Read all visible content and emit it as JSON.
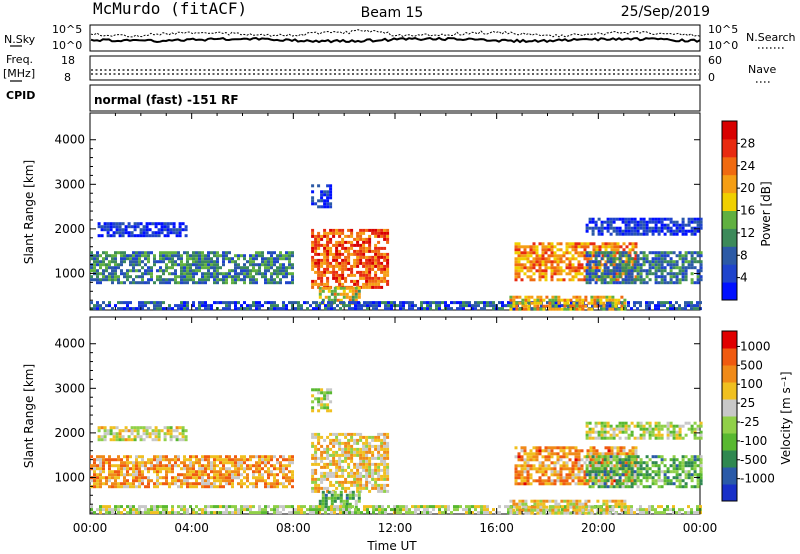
{
  "header": {
    "station": "McMurdo (fitACF)",
    "beam": "Beam 15",
    "date": "25/Sep/2019"
  },
  "noise_panel": {
    "left_label": "N.Sky",
    "right_label": "N.Search",
    "left_ticks": [
      "10^5",
      "10^0"
    ],
    "right_ticks": [
      "10^5",
      "10^0"
    ]
  },
  "freq_panel": {
    "left_label_line1": "Freq.",
    "left_label_line2": "[MHz]",
    "left_ticks": [
      "18",
      "8"
    ],
    "right_label": "Nave",
    "right_ticks": [
      "60",
      "0"
    ]
  },
  "cpid": {
    "label": "CPID",
    "text": "normal (fast) -151 RF"
  },
  "chart_data": [
    {
      "type": "heatmap",
      "parameter": "Power",
      "ylabel": "Slant Range [km]",
      "ylim": [
        180,
        4600
      ],
      "yticks": [
        "1000",
        "2000",
        "3000",
        "4000"
      ],
      "xlim": [
        0,
        24
      ],
      "colorbar": {
        "label": "Power [dB]",
        "ticks": [
          "4",
          "8",
          "12",
          "16",
          "20",
          "24",
          "28"
        ],
        "range": [
          0,
          32
        ],
        "colors": [
          "#0010ff",
          "#1f44cc",
          "#2c5aa6",
          "#3c8a5a",
          "#60b040",
          "#f0d000",
          "#f59e14",
          "#f06a10",
          "#e82a10",
          "#d80000"
        ]
      },
      "regions": [
        {
          "x0": 0.0,
          "x1": 8.0,
          "y0": 800,
          "y1": 1500,
          "level": 0.32
        },
        {
          "x0": 0.3,
          "x1": 3.8,
          "y0": 1850,
          "y1": 2150,
          "level": 0.1
        },
        {
          "x0": 8.7,
          "x1": 11.7,
          "y0": 700,
          "y1": 2000,
          "level": 0.78
        },
        {
          "x0": 8.7,
          "x1": 9.5,
          "y0": 2500,
          "y1": 3000,
          "level": 0.12
        },
        {
          "x0": 9.0,
          "x1": 10.6,
          "y0": 350,
          "y1": 700,
          "level": 0.55
        },
        {
          "x0": 16.7,
          "x1": 21.5,
          "y0": 850,
          "y1": 1700,
          "level": 0.7
        },
        {
          "x0": 19.5,
          "x1": 24.0,
          "y0": 800,
          "y1": 1500,
          "level": 0.28
        },
        {
          "x0": 19.5,
          "x1": 24.0,
          "y0": 1850,
          "y1": 2250,
          "level": 0.12
        },
        {
          "x0": 0.0,
          "x1": 24.0,
          "y0": 190,
          "y1": 380,
          "level": 0.2
        },
        {
          "x0": 16.5,
          "x1": 21.0,
          "y0": 200,
          "y1": 500,
          "level": 0.6
        }
      ]
    },
    {
      "type": "heatmap",
      "parameter": "Velocity",
      "ylabel": "Slant Range [km]",
      "ylim": [
        180,
        4600
      ],
      "yticks": [
        "1000",
        "2000",
        "3000",
        "4000"
      ],
      "xlim": [
        0,
        24
      ],
      "xticks": [
        "00:00",
        "04:00",
        "08:00",
        "12:00",
        "16:00",
        "20:00",
        "00:00"
      ],
      "xlabel": "Time UT",
      "colorbar": {
        "label": "Velocity [m s⁻¹]",
        "ticks": [
          "1000",
          "500",
          "100",
          "25",
          "-25",
          "-100",
          "-500",
          "-1000"
        ],
        "range": [
          -1200,
          1200
        ],
        "colors": [
          "#1830c8",
          "#2a5aa8",
          "#2f8850",
          "#58b830",
          "#90d048",
          "#c8c8c8",
          "#f0c020",
          "#f08a18",
          "#f05a10",
          "#e00000"
        ]
      },
      "regions": [
        {
          "x0": 0.0,
          "x1": 8.0,
          "y0": 800,
          "y1": 1500,
          "level": 0.72
        },
        {
          "x0": 0.3,
          "x1": 3.8,
          "y0": 1850,
          "y1": 2150,
          "level": 0.55
        },
        {
          "x0": 8.7,
          "x1": 11.7,
          "y0": 700,
          "y1": 2000,
          "level": 0.62
        },
        {
          "x0": 8.7,
          "x1": 9.5,
          "y0": 2500,
          "y1": 3000,
          "level": 0.5
        },
        {
          "x0": 9.0,
          "x1": 10.6,
          "y0": 350,
          "y1": 700,
          "level": 0.35
        },
        {
          "x0": 16.7,
          "x1": 21.5,
          "y0": 850,
          "y1": 1700,
          "level": 0.73
        },
        {
          "x0": 19.5,
          "x1": 24.0,
          "y0": 800,
          "y1": 1500,
          "level": 0.35
        },
        {
          "x0": 19.5,
          "x1": 24.0,
          "y0": 1850,
          "y1": 2250,
          "level": 0.5
        },
        {
          "x0": 0.0,
          "x1": 24.0,
          "y0": 190,
          "y1": 380,
          "level": 0.5
        },
        {
          "x0": 16.5,
          "x1": 21.0,
          "y0": 200,
          "y1": 500,
          "level": 0.6
        }
      ]
    }
  ]
}
